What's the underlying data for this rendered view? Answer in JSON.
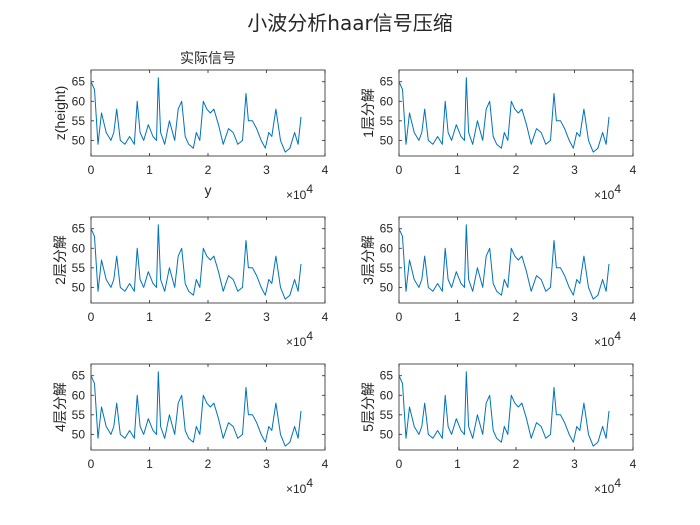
{
  "figure": {
    "suptitle": "小波分析haar信号压缩",
    "line_color": "#0072BD",
    "axis_color": "#262626"
  },
  "chart_data": [
    {
      "type": "line",
      "title": "实际信号",
      "xlabel": "y",
      "ylabel": "z(height)",
      "xlim": [
        0,
        40000
      ],
      "ylim": [
        46,
        68
      ],
      "xticks": [
        "0",
        "1",
        "2",
        "3",
        "4"
      ],
      "yticks": [
        "50",
        "55",
        "60",
        "65"
      ],
      "x_multiplier": "×10^4",
      "grid": false,
      "series": [
        {
          "x": [
            0,
            600,
            1200,
            1800,
            2600,
            3400,
            3900,
            4400,
            5000,
            5800,
            6600,
            7400,
            7900,
            8400,
            9000,
            9800,
            10600,
            11200,
            11500,
            11900,
            12600,
            13400,
            14300,
            14900,
            15500,
            16100,
            16700,
            17500,
            18000,
            18600,
            19200,
            19800,
            20400,
            21000,
            21800,
            22600,
            23500,
            24300,
            25100,
            25900,
            26500,
            26900,
            27600,
            28300,
            29100,
            29800,
            30400,
            30900,
            31600,
            32400,
            33200,
            34000,
            34800,
            35400,
            35900
          ],
          "y": [
            65,
            63,
            49,
            57,
            52,
            50,
            52,
            58,
            50,
            49,
            51,
            49,
            60,
            52,
            50,
            54,
            51,
            50,
            66,
            52,
            49,
            55,
            50,
            58,
            60,
            51,
            49,
            48,
            52,
            50,
            60,
            58,
            57,
            58,
            54,
            49,
            53,
            52,
            49,
            50,
            62,
            55,
            55,
            53,
            50,
            48,
            52,
            51,
            58,
            50,
            47,
            48,
            52,
            49,
            56
          ]
        }
      ]
    },
    {
      "type": "line",
      "title": "",
      "xlabel": "",
      "ylabel": "1层分解",
      "xlim": [
        0,
        40000
      ],
      "ylim": [
        46,
        68
      ],
      "xticks": [
        "0",
        "1",
        "2",
        "3",
        "4"
      ],
      "yticks": [
        "50",
        "55",
        "60",
        "65"
      ],
      "x_multiplier": "×10^4",
      "grid": false,
      "series": [
        {
          "x": [
            0,
            600,
            1200,
            1800,
            2600,
            3400,
            3900,
            4400,
            5000,
            5800,
            6600,
            7400,
            7900,
            8400,
            9000,
            9800,
            10600,
            11200,
            11500,
            11900,
            12600,
            13400,
            14300,
            14900,
            15500,
            16100,
            16700,
            17500,
            18000,
            18600,
            19200,
            19800,
            20400,
            21000,
            21800,
            22600,
            23500,
            24300,
            25100,
            25900,
            26500,
            26900,
            27600,
            28300,
            29100,
            29800,
            30400,
            30900,
            31600,
            32400,
            33200,
            34000,
            34800,
            35400,
            35900
          ],
          "y": [
            65,
            63,
            49,
            57,
            52,
            50,
            52,
            58,
            50,
            49,
            51,
            49,
            60,
            52,
            50,
            54,
            51,
            50,
            66,
            52,
            49,
            55,
            50,
            58,
            60,
            51,
            49,
            48,
            52,
            50,
            60,
            58,
            57,
            58,
            54,
            49,
            53,
            52,
            49,
            50,
            62,
            55,
            55,
            53,
            50,
            48,
            52,
            51,
            58,
            50,
            47,
            48,
            52,
            49,
            56
          ]
        }
      ]
    },
    {
      "type": "line",
      "title": "",
      "xlabel": "",
      "ylabel": "2层分解",
      "xlim": [
        0,
        40000
      ],
      "ylim": [
        46,
        68
      ],
      "xticks": [
        "0",
        "1",
        "2",
        "3",
        "4"
      ],
      "yticks": [
        "50",
        "55",
        "60",
        "65"
      ],
      "x_multiplier": "×10^4",
      "grid": false,
      "series": [
        {
          "x": [
            0,
            600,
            1200,
            1800,
            2600,
            3400,
            3900,
            4400,
            5000,
            5800,
            6600,
            7400,
            7900,
            8400,
            9000,
            9800,
            10600,
            11200,
            11500,
            11900,
            12600,
            13400,
            14300,
            14900,
            15500,
            16100,
            16700,
            17500,
            18000,
            18600,
            19200,
            19800,
            20400,
            21000,
            21800,
            22600,
            23500,
            24300,
            25100,
            25900,
            26500,
            26900,
            27600,
            28300,
            29100,
            29800,
            30400,
            30900,
            31600,
            32400,
            33200,
            34000,
            34800,
            35400,
            35900
          ],
          "y": [
            65,
            63,
            49,
            57,
            52,
            50,
            52,
            58,
            50,
            49,
            51,
            49,
            60,
            52,
            50,
            54,
            51,
            50,
            66,
            52,
            49,
            55,
            50,
            58,
            60,
            51,
            49,
            48,
            52,
            50,
            60,
            58,
            57,
            58,
            54,
            49,
            53,
            52,
            49,
            50,
            62,
            55,
            55,
            53,
            50,
            48,
            52,
            51,
            58,
            50,
            47,
            48,
            52,
            49,
            56
          ]
        }
      ]
    },
    {
      "type": "line",
      "title": "",
      "xlabel": "",
      "ylabel": "3层分解",
      "xlim": [
        0,
        40000
      ],
      "ylim": [
        46,
        68
      ],
      "xticks": [
        "0",
        "1",
        "2",
        "3",
        "4"
      ],
      "yticks": [
        "50",
        "55",
        "60",
        "65"
      ],
      "x_multiplier": "×10^4",
      "grid": false,
      "series": [
        {
          "x": [
            0,
            600,
            1200,
            1800,
            2600,
            3400,
            3900,
            4400,
            5000,
            5800,
            6600,
            7400,
            7900,
            8400,
            9000,
            9800,
            10600,
            11200,
            11500,
            11900,
            12600,
            13400,
            14300,
            14900,
            15500,
            16100,
            16700,
            17500,
            18000,
            18600,
            19200,
            19800,
            20400,
            21000,
            21800,
            22600,
            23500,
            24300,
            25100,
            25900,
            26500,
            26900,
            27600,
            28300,
            29100,
            29800,
            30400,
            30900,
            31600,
            32400,
            33200,
            34000,
            34800,
            35400,
            35900
          ],
          "y": [
            65,
            63,
            49,
            57,
            52,
            50,
            52,
            58,
            50,
            49,
            51,
            49,
            60,
            52,
            50,
            54,
            51,
            50,
            66,
            52,
            49,
            55,
            50,
            58,
            60,
            51,
            49,
            48,
            52,
            50,
            60,
            58,
            57,
            58,
            54,
            49,
            53,
            52,
            49,
            50,
            62,
            55,
            55,
            53,
            50,
            48,
            52,
            51,
            58,
            50,
            47,
            48,
            52,
            49,
            56
          ]
        }
      ]
    },
    {
      "type": "line",
      "title": "",
      "xlabel": "",
      "ylabel": "4层分解",
      "xlim": [
        0,
        40000
      ],
      "ylim": [
        46,
        68
      ],
      "xticks": [
        "0",
        "1",
        "2",
        "3",
        "4"
      ],
      "yticks": [
        "50",
        "55",
        "60",
        "65"
      ],
      "x_multiplier": "×10^4",
      "grid": false,
      "series": [
        {
          "x": [
            0,
            600,
            1200,
            1800,
            2600,
            3400,
            3900,
            4400,
            5000,
            5800,
            6600,
            7400,
            7900,
            8400,
            9000,
            9800,
            10600,
            11200,
            11500,
            11900,
            12600,
            13400,
            14300,
            14900,
            15500,
            16100,
            16700,
            17500,
            18000,
            18600,
            19200,
            19800,
            20400,
            21000,
            21800,
            22600,
            23500,
            24300,
            25100,
            25900,
            26500,
            26900,
            27600,
            28300,
            29100,
            29800,
            30400,
            30900,
            31600,
            32400,
            33200,
            34000,
            34800,
            35400,
            35900
          ],
          "y": [
            65,
            63,
            49,
            57,
            52,
            50,
            52,
            58,
            50,
            49,
            51,
            49,
            60,
            52,
            50,
            54,
            51,
            50,
            66,
            52,
            49,
            55,
            50,
            58,
            60,
            51,
            49,
            48,
            52,
            50,
            60,
            58,
            57,
            58,
            54,
            49,
            53,
            52,
            49,
            50,
            62,
            55,
            55,
            53,
            50,
            48,
            52,
            51,
            58,
            50,
            47,
            48,
            52,
            49,
            56
          ]
        }
      ]
    },
    {
      "type": "line",
      "title": "",
      "xlabel": "",
      "ylabel": "5层分解",
      "xlim": [
        0,
        40000
      ],
      "ylim": [
        46,
        68
      ],
      "xticks": [
        "0",
        "1",
        "2",
        "3",
        "4"
      ],
      "yticks": [
        "50",
        "55",
        "60",
        "65"
      ],
      "x_multiplier": "×10^4",
      "grid": false,
      "series": [
        {
          "x": [
            0,
            600,
            1200,
            1800,
            2600,
            3400,
            3900,
            4400,
            5000,
            5800,
            6600,
            7400,
            7900,
            8400,
            9000,
            9800,
            10600,
            11200,
            11500,
            11900,
            12600,
            13400,
            14300,
            14900,
            15500,
            16100,
            16700,
            17500,
            18000,
            18600,
            19200,
            19800,
            20400,
            21000,
            21800,
            22600,
            23500,
            24300,
            25100,
            25900,
            26500,
            26900,
            27600,
            28300,
            29100,
            29800,
            30400,
            30900,
            31600,
            32400,
            33200,
            34000,
            34800,
            35400,
            35900
          ],
          "y": [
            65,
            63,
            49,
            57,
            52,
            50,
            52,
            58,
            50,
            49,
            51,
            49,
            60,
            52,
            50,
            54,
            51,
            50,
            66,
            52,
            49,
            55,
            50,
            58,
            60,
            51,
            49,
            48,
            52,
            50,
            60,
            58,
            57,
            58,
            54,
            49,
            53,
            52,
            49,
            50,
            62,
            55,
            55,
            53,
            50,
            48,
            52,
            51,
            58,
            50,
            47,
            48,
            52,
            49,
            56
          ]
        }
      ]
    }
  ]
}
